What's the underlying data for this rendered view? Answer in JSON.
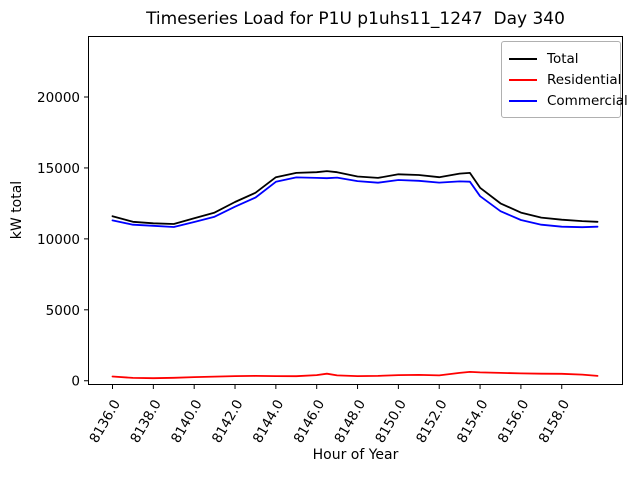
{
  "chart_data": {
    "type": "line",
    "title": "Timeseries Load for P1U p1uhs11_1247  Day 340",
    "xlabel": "Hour of Year",
    "ylabel": "kW total",
    "xlim": [
      8134.8,
      8161.0
    ],
    "ylim": [
      -300,
      24300
    ],
    "xticks": [
      8136,
      8138,
      8140,
      8142,
      8144,
      8146,
      8148,
      8150,
      8152,
      8154,
      8156,
      8158
    ],
    "xtick_labels": [
      "8136.0",
      "8138.0",
      "8140.0",
      "8142.0",
      "8144.0",
      "8146.0",
      "8148.0",
      "8150.0",
      "8152.0",
      "8154.0",
      "8156.0",
      "8158.0"
    ],
    "xtick_rotation_deg": 60,
    "yticks": [
      0,
      5000,
      10000,
      15000,
      20000
    ],
    "ytick_labels": [
      "0",
      "5000",
      "10000",
      "15000",
      "20000"
    ],
    "grid": false,
    "legend_position": "upper right",
    "x": [
      8136,
      8137,
      8138,
      8139,
      8140,
      8141,
      8142,
      8143,
      8144,
      8145,
      8146,
      8146.5,
      8147,
      8148,
      8149,
      8150,
      8151,
      8152,
      8153,
      8153.5,
      8154,
      8155,
      8156,
      8157,
      8158,
      8159,
      8159.75
    ],
    "series": [
      {
        "name": "Total",
        "color": "#000000",
        "values": [
          11600,
          11200,
          11100,
          11050,
          11450,
          11850,
          12600,
          13250,
          14350,
          14650,
          14700,
          14780,
          14700,
          14400,
          14300,
          14550,
          14500,
          14350,
          14600,
          14650,
          13600,
          12500,
          11850,
          11500,
          11350,
          11250,
          11200
        ]
      },
      {
        "name": "Residential",
        "color": "#ff0000",
        "values": [
          300,
          200,
          180,
          210,
          260,
          290,
          330,
          340,
          330,
          320,
          400,
          500,
          380,
          330,
          340,
          400,
          410,
          380,
          550,
          620,
          590,
          550,
          520,
          500,
          490,
          430,
          340
        ]
      },
      {
        "name": "Commercial",
        "color": "#0000ff",
        "values": [
          11300,
          11000,
          10920,
          10840,
          11190,
          11560,
          12270,
          12910,
          14020,
          14330,
          14300,
          14280,
          14320,
          14070,
          13960,
          14150,
          14090,
          13970,
          14050,
          14030,
          13010,
          11950,
          11330,
          11000,
          10860,
          10820,
          10860
        ]
      }
    ]
  },
  "legend": {
    "items": [
      {
        "label": "Total",
        "color": "#000000"
      },
      {
        "label": "Residential",
        "color": "#ff0000"
      },
      {
        "label": "Commercial",
        "color": "#0000ff"
      }
    ]
  }
}
